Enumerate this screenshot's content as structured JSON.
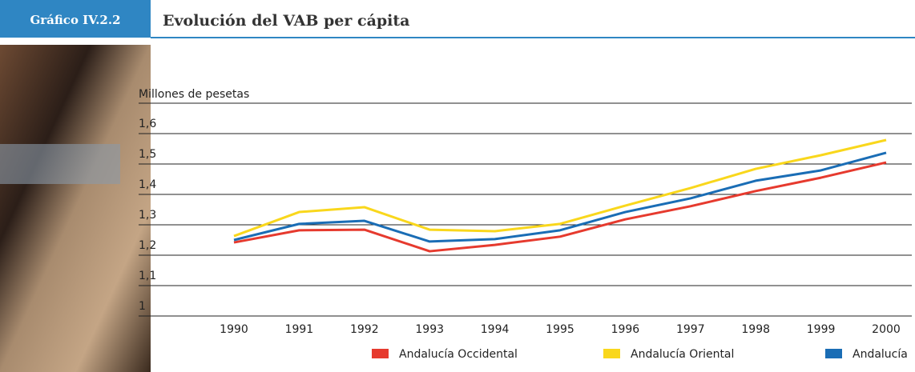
{
  "header": {
    "label": "Gráfico IV.2.2"
  },
  "chart_data": {
    "type": "line",
    "title": "Evolución del VAB per cápita",
    "ylabel": "Millones de pesetas",
    "categories": [
      "1990",
      "1991",
      "1992",
      "1993",
      "1994",
      "1995",
      "1996",
      "1997",
      "1998",
      "1999",
      "2000"
    ],
    "series": [
      {
        "name": "Andalucía Occidental",
        "color": "#e63a2e",
        "values": [
          1.242,
          1.282,
          1.284,
          1.213,
          1.234,
          1.261,
          1.318,
          1.361,
          1.411,
          1.455,
          1.505
        ]
      },
      {
        "name": "Andalucía Oriental",
        "color": "#f9d71c",
        "values": [
          1.263,
          1.342,
          1.358,
          1.284,
          1.279,
          1.303,
          1.363,
          1.421,
          1.484,
          1.529,
          1.579
        ]
      },
      {
        "name": "Andalucía",
        "color": "#1a6db5",
        "values": [
          1.25,
          1.303,
          1.313,
          1.245,
          1.253,
          1.282,
          1.342,
          1.387,
          1.445,
          1.479,
          1.537
        ]
      }
    ],
    "ylim": [
      1,
      1.7
    ],
    "yticks": [
      1,
      {
        "value": 1.1,
        "label": "1,1"
      },
      {
        "value": 1.2,
        "label": "1,2"
      },
      {
        "value": 1.3,
        "label": "1,3"
      },
      {
        "value": 1.4,
        "label": "1,4"
      },
      {
        "value": 1.5,
        "label": "1,5"
      },
      {
        "value": 1.6,
        "label": "1,6"
      }
    ],
    "grid": true,
    "legend": "bottom"
  }
}
